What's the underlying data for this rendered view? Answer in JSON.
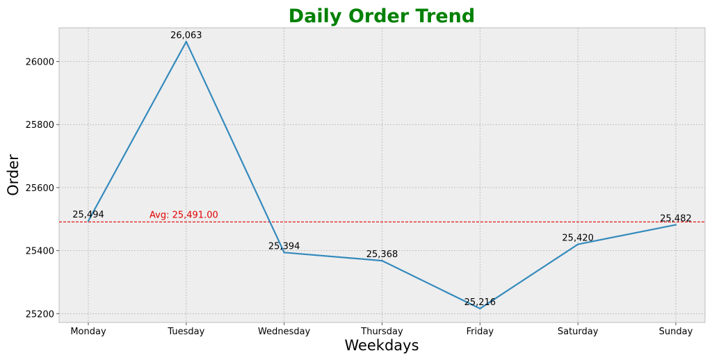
{
  "chart_data": {
    "type": "line",
    "title": "Daily Order Trend",
    "xlabel": "Weekdays",
    "ylabel": "Order",
    "categories": [
      "Monday",
      "Tuesday",
      "Wednesday",
      "Thursday",
      "Friday",
      "Saturday",
      "Sunday"
    ],
    "series": [
      {
        "values": [
          25494,
          26063,
          25394,
          25368,
          25216,
          25420,
          25482
        ],
        "labels": [
          "25,494",
          "26,063",
          "25,394",
          "25,368",
          "25,216",
          "25,420",
          "25,482"
        ],
        "color": "#348ABD"
      }
    ],
    "average": {
      "value": 25491,
      "label": "Avg: 25,491.00",
      "color": "#E00000"
    },
    "ylim": [
      25172,
      26107
    ],
    "yticks": [
      25200,
      25400,
      25600,
      25800,
      26000
    ],
    "grid": true,
    "background": "#EEEEEE",
    "title_color": "#008000"
  }
}
